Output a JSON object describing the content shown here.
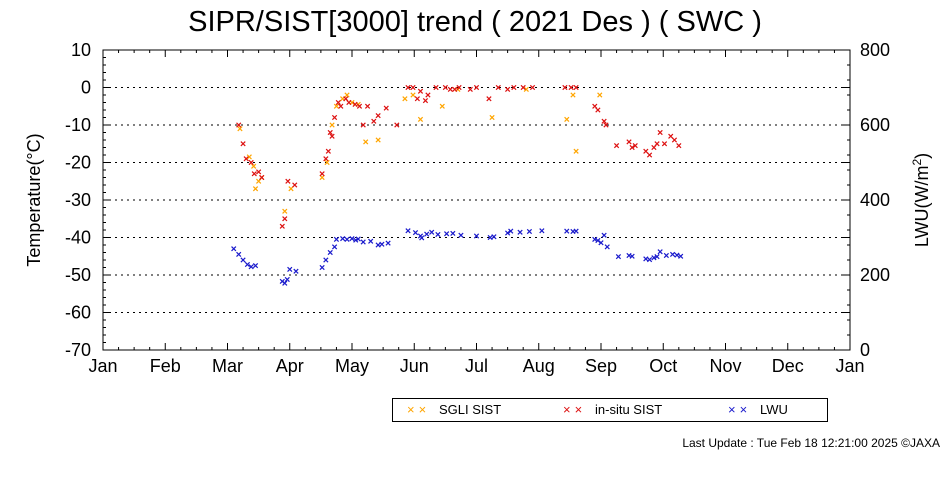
{
  "chart_data": {
    "type": "scatter",
    "title": "SIPR/SIST[3000] trend ( 2021 Des ) ( SWC )",
    "ylabel": "Temperature(°C)",
    "y2label_main": "LWU(W/m",
    "y2label_sup": "2",
    "y2label_end": ")",
    "xlabel": "",
    "x_ticks": [
      "Jan",
      "Feb",
      "Mar",
      "Apr",
      "May",
      "Jun",
      "Jul",
      "Aug",
      "Sep",
      "Oct",
      "Nov",
      "Dec",
      "Jan"
    ],
    "ylim": [
      -70,
      10
    ],
    "y_ticks": [
      "10",
      "0",
      "-10",
      "-20",
      "-30",
      "-40",
      "-50",
      "-60",
      "-70"
    ],
    "y2lim": [
      0,
      800
    ],
    "y2_ticks": [
      "800",
      "600",
      "400",
      "200",
      "0"
    ],
    "grid": "horizontal dotted",
    "legend_position": "bottom",
    "series": [
      {
        "name": "SGLI SIST",
        "axis": "left",
        "color": "#ffa500",
        "points": [
          [
            2.2,
            -11
          ],
          [
            2.35,
            -18.5
          ],
          [
            2.42,
            -21
          ],
          [
            2.45,
            -27
          ],
          [
            2.5,
            -25
          ],
          [
            2.55,
            -24
          ],
          [
            2.92,
            -33
          ],
          [
            3.02,
            -27
          ],
          [
            3.52,
            -24
          ],
          [
            3.6,
            -20
          ],
          [
            3.68,
            -10
          ],
          [
            3.75,
            -5
          ],
          [
            3.85,
            -3
          ],
          [
            3.92,
            -2
          ],
          [
            4.0,
            -4
          ],
          [
            4.1,
            -4.5
          ],
          [
            4.22,
            -14.5
          ],
          [
            4.42,
            -14
          ],
          [
            4.85,
            -3
          ],
          [
            4.98,
            -2
          ],
          [
            5.1,
            -8.5
          ],
          [
            5.45,
            -5
          ],
          [
            5.7,
            -0.5
          ],
          [
            6.25,
            -8
          ],
          [
            6.8,
            -0.5
          ],
          [
            7.45,
            -8.5
          ],
          [
            7.55,
            -2
          ],
          [
            7.6,
            -17
          ],
          [
            7.98,
            -2
          ]
        ]
      },
      {
        "name": "in-situ SIST",
        "axis": "left",
        "color": "#dd1111",
        "points": [
          [
            2.18,
            -10
          ],
          [
            2.25,
            -15
          ],
          [
            2.3,
            -19
          ],
          [
            2.38,
            -20
          ],
          [
            2.43,
            -23
          ],
          [
            2.5,
            -22.5
          ],
          [
            2.55,
            -24
          ],
          [
            2.88,
            -37
          ],
          [
            2.92,
            -35
          ],
          [
            2.97,
            -25
          ],
          [
            3.08,
            -26
          ],
          [
            3.52,
            -23
          ],
          [
            3.58,
            -19
          ],
          [
            3.62,
            -17
          ],
          [
            3.65,
            -12
          ],
          [
            3.68,
            -13
          ],
          [
            3.72,
            -8
          ],
          [
            3.78,
            -4
          ],
          [
            3.82,
            -5
          ],
          [
            3.9,
            -3
          ],
          [
            3.95,
            -4
          ],
          [
            4.05,
            -4.5
          ],
          [
            4.12,
            -5
          ],
          [
            4.18,
            -10
          ],
          [
            4.25,
            -5
          ],
          [
            4.35,
            -9
          ],
          [
            4.42,
            -7.5
          ],
          [
            4.55,
            -5.5
          ],
          [
            4.72,
            -10
          ],
          [
            4.9,
            0
          ],
          [
            4.98,
            0
          ],
          [
            5.05,
            -3
          ],
          [
            5.1,
            -1
          ],
          [
            5.18,
            -3.5
          ],
          [
            5.22,
            -2
          ],
          [
            5.35,
            0
          ],
          [
            5.5,
            0
          ],
          [
            5.58,
            -0.5
          ],
          [
            5.65,
            -0.5
          ],
          [
            5.72,
            0
          ],
          [
            5.9,
            -0.5
          ],
          [
            6.0,
            0
          ],
          [
            6.2,
            -3
          ],
          [
            6.35,
            0
          ],
          [
            6.5,
            -0.5
          ],
          [
            6.6,
            0
          ],
          [
            6.75,
            0
          ],
          [
            6.9,
            0
          ],
          [
            7.42,
            0
          ],
          [
            7.52,
            0
          ],
          [
            7.6,
            0
          ],
          [
            7.9,
            -5
          ],
          [
            7.95,
            -6
          ],
          [
            8.05,
            -9
          ],
          [
            8.08,
            -10
          ],
          [
            8.25,
            -15.5
          ],
          [
            8.45,
            -14.5
          ],
          [
            8.5,
            -16
          ],
          [
            8.55,
            -15.5
          ],
          [
            8.72,
            -17
          ],
          [
            8.78,
            -18
          ],
          [
            8.85,
            -16
          ],
          [
            8.9,
            -15
          ],
          [
            8.95,
            -12
          ],
          [
            9.02,
            -15
          ],
          [
            9.12,
            -13
          ],
          [
            9.18,
            -14
          ],
          [
            9.25,
            -15.5
          ]
        ]
      },
      {
        "name": "LWU",
        "axis": "right",
        "color": "#1a1acc",
        "points": [
          [
            2.1,
            270
          ],
          [
            2.18,
            255
          ],
          [
            2.25,
            240
          ],
          [
            2.32,
            228
          ],
          [
            2.38,
            222
          ],
          [
            2.45,
            225
          ],
          [
            2.88,
            183
          ],
          [
            2.92,
            178
          ],
          [
            2.96,
            188
          ],
          [
            3.0,
            215
          ],
          [
            3.1,
            210
          ],
          [
            3.52,
            220
          ],
          [
            3.58,
            240
          ],
          [
            3.65,
            260
          ],
          [
            3.72,
            275
          ],
          [
            3.75,
            295
          ],
          [
            3.85,
            297
          ],
          [
            3.92,
            295
          ],
          [
            4.0,
            297
          ],
          [
            4.06,
            293
          ],
          [
            4.1,
            296
          ],
          [
            4.18,
            288
          ],
          [
            4.3,
            290
          ],
          [
            4.42,
            280
          ],
          [
            4.48,
            282
          ],
          [
            4.58,
            285
          ],
          [
            4.9,
            318
          ],
          [
            5.02,
            313
          ],
          [
            5.1,
            304
          ],
          [
            5.12,
            299
          ],
          [
            5.2,
            309
          ],
          [
            5.28,
            314
          ],
          [
            5.38,
            308
          ],
          [
            5.52,
            310
          ],
          [
            5.62,
            311
          ],
          [
            5.75,
            306
          ],
          [
            6.0,
            304
          ],
          [
            6.22,
            300
          ],
          [
            6.28,
            302
          ],
          [
            6.5,
            312
          ],
          [
            6.55,
            317
          ],
          [
            6.7,
            314
          ],
          [
            6.85,
            316
          ],
          [
            7.05,
            318
          ],
          [
            7.45,
            317
          ],
          [
            7.55,
            316
          ],
          [
            7.6,
            317
          ],
          [
            7.9,
            295
          ],
          [
            7.95,
            292
          ],
          [
            8.0,
            286
          ],
          [
            8.05,
            306
          ],
          [
            8.1,
            275
          ],
          [
            8.28,
            249
          ],
          [
            8.45,
            252
          ],
          [
            8.5,
            250
          ],
          [
            8.72,
            243
          ],
          [
            8.78,
            241
          ],
          [
            8.85,
            246
          ],
          [
            8.9,
            249
          ],
          [
            8.95,
            262
          ],
          [
            9.05,
            252
          ],
          [
            9.15,
            255
          ],
          [
            9.22,
            253
          ],
          [
            9.28,
            250
          ]
        ]
      }
    ]
  },
  "footer": {
    "last_update": "Last Update : Tue Feb 18 12:21:00 2025 ©JAXA"
  }
}
